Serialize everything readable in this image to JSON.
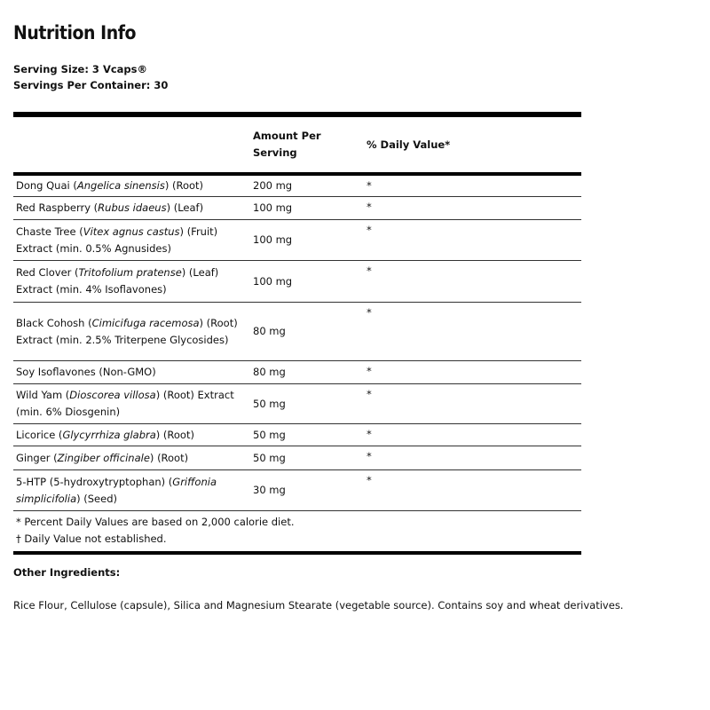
{
  "title": "Nutrition Info",
  "serving_size": "Serving Size: 3 Vcaps®",
  "servings_per_container": "Servings Per Container: 30",
  "table": {
    "headers": {
      "amount": "Amount Per\nServing",
      "daily_value": "% Daily Value*"
    },
    "rows": [
      {
        "pre": "Dong Quai (",
        "latin": "Angelica sinensis",
        "post": ") (Root)",
        "amount": "200 mg",
        "dv": "*"
      },
      {
        "pre": "Red Raspberry (",
        "latin": "Rubus idaeus",
        "post": ") (Leaf)",
        "amount": "100 mg",
        "dv": "*"
      },
      {
        "pre": "Chaste Tree (",
        "latin": "Vitex agnus castus",
        "post": ") (Fruit) Extract (min. 0.5% Agnusides)",
        "amount": "100 mg",
        "dv": "*"
      },
      {
        "pre": "Red Clover (",
        "latin": "Tritofolium pratense",
        "post": ") (Leaf) Extract (min. 4% Isoflavones)",
        "amount": "100 mg",
        "dv": "*"
      },
      {
        "pre": "Black Cohosh (",
        "latin": "Cimicifuga racemosa",
        "post": ") (Root) Extract (min. 2.5% Triterpene Glycosides)",
        "amount": "80 mg",
        "dv": "*"
      },
      {
        "pre": "Soy Isoflavones (Non-GMO)",
        "latin": "",
        "post": "",
        "amount": "80 mg",
        "dv": "*"
      },
      {
        "pre": "Wild Yam (",
        "latin": "Dioscorea villosa",
        "post": ") (Root) Extract (min. 6% Diosgenin)",
        "amount": "50 mg",
        "dv": "*"
      },
      {
        "pre": "Licorice (",
        "latin": "Glycyrrhiza glabra",
        "post": ") (Root)",
        "amount": "50 mg",
        "dv": "*"
      },
      {
        "pre": "Ginger  (",
        "latin": "Zingiber officinale",
        "post": ") (Root)",
        "amount": "50 mg",
        "dv": "*"
      },
      {
        "pre": "5-HTP (5-hydroxytryptophan) (",
        "latin": "Griffonia simplicifolia",
        "post": ") (Seed)",
        "amount": "30 mg",
        "dv": "*"
      }
    ],
    "footnotes": [
      "* Percent Daily Values are based on 2,000 calorie diet.",
      "† Daily Value not established."
    ]
  },
  "other_ingredients": {
    "heading": "Other Ingredients:",
    "text": "Rice Flour, Cellulose (capsule), Silica and Magnesium Stearate (vegetable source).  Contains soy and wheat derivatives."
  }
}
